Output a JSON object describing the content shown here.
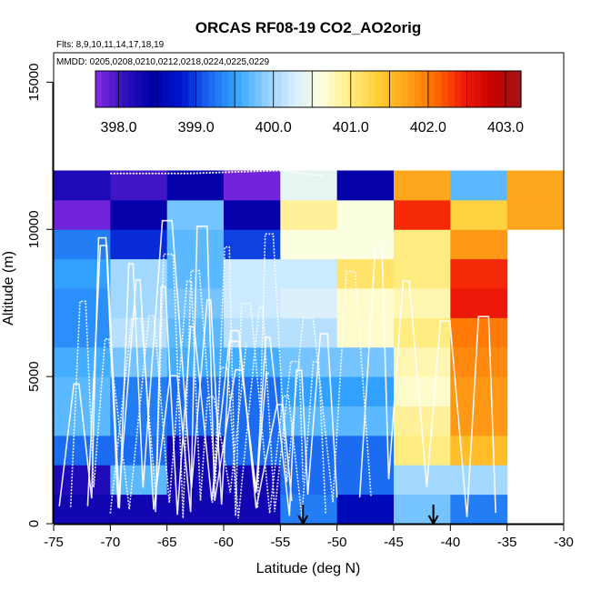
{
  "chart_data": {
    "type": "heatmap",
    "title": "ORCAS RF08-19 CO2_AO2orig",
    "flights_label": "Flts: 8,9,10,11,14,17,18,19",
    "mmdd_label": "MMDD: 0205,0208,0210,0212,0218,0224,0225,0229",
    "xlabel": "Latitude (deg N)",
    "ylabel": "Altitude (m)",
    "xlim": [
      -75,
      -30
    ],
    "ylim": [
      0,
      16000
    ],
    "x_ticks": [
      -75,
      -70,
      -65,
      -60,
      -55,
      -50,
      -45,
      -40,
      -35,
      -30
    ],
    "x_tick_labels": [
      "-75",
      "-70",
      "-65",
      "-60",
      "-55",
      "-50",
      "-45",
      "-40",
      "-35",
      "-30"
    ],
    "y_ticks": [
      0,
      5000,
      10000,
      15000
    ],
    "y_tick_labels": [
      "0",
      "5000",
      "10000",
      "15000"
    ],
    "colorbar": {
      "min": 397.7,
      "max": 403.2,
      "ticks": [
        398.0,
        399.0,
        400.0,
        401.0,
        402.0,
        403.0
      ],
      "tick_labels": [
        "398.0",
        "399.0",
        "400.0",
        "401.0",
        "402.0",
        "403.0"
      ],
      "stops": [
        "#8a2be2",
        "#3010c0",
        "#0000a8",
        "#0015cc",
        "#1a66f0",
        "#33a6ff",
        "#8fcfff",
        "#d8efff",
        "#ffffdc",
        "#ffec80",
        "#ffcc33",
        "#ffa31a",
        "#ff6a00",
        "#f01a0a",
        "#c80000",
        "#a01414"
      ]
    },
    "lat_bins": [
      -75,
      -70,
      -65,
      -60,
      -55,
      -50,
      -45,
      -40,
      -35
    ],
    "alt_bins": [
      0,
      1000,
      2000,
      3000,
      4000,
      5000,
      6000,
      7000,
      8000,
      9000,
      10000,
      11000,
      12000
    ],
    "cells": [
      [
        398.3,
        398.3,
        398.3,
        398.3,
        399.3,
        398.6,
        399.8,
        399.3
      ],
      [
        398.2,
        399.7,
        398.3,
        398.3,
        399.2,
        399.2,
        400.0,
        400.0
      ],
      [
        399.2,
        399.2,
        398.3,
        399.2,
        399.2,
        399.2,
        401.0,
        401.5
      ],
      [
        399.7,
        399.3,
        399.2,
        399.2,
        399.7,
        399.7,
        400.9,
        401.8
      ],
      [
        399.7,
        399.3,
        399.2,
        399.2,
        399.5,
        399.5,
        400.7,
        401.8
      ],
      [
        399.6,
        399.8,
        399.6,
        399.6,
        399.8,
        399.8,
        400.8,
        401.9
      ],
      [
        399.4,
        400.1,
        399.7,
        400.1,
        400.1,
        400.7,
        401.0,
        402.0
      ],
      [
        399.4,
        400.0,
        399.8,
        400.2,
        400.3,
        400.7,
        400.8,
        402.5
      ],
      [
        399.5,
        400.0,
        399.7,
        400.2,
        400.2,
        401.1,
        401.0,
        402.4
      ],
      [
        399.3,
        398.9,
        399.7,
        399.0,
        400.6,
        400.6,
        401.0,
        401.8
      ],
      [
        397.8,
        398.4,
        399.8,
        398.4,
        400.9,
        400.6,
        402.4,
        401.3
      ],
      [
        398.2,
        398.0,
        398.4,
        397.8,
        400.4,
        398.4,
        401.7,
        399.7
      ]
    ],
    "extra_cells": [
      {
        "lat": [
          -35,
          -30
        ],
        "alt": [
          10000,
          11000
        ],
        "value": 401.7
      },
      {
        "lat": [
          -35,
          -30
        ],
        "alt": [
          11000,
          12000
        ],
        "value": 401.7
      }
    ],
    "markers_latitude": [
      -53,
      -41.5
    ]
  }
}
